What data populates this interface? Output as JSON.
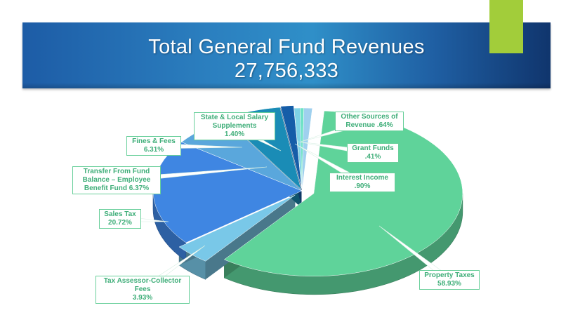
{
  "title": {
    "line1": "Total General Fund Revenues",
    "line2": "27,756,333"
  },
  "colors": {
    "banner": "#2b7fbf",
    "accent": "#a2cd3a",
    "label_text": "#3fae79",
    "label_border": "#68cf9a"
  },
  "chart_data": {
    "type": "pie",
    "title": "Total General Fund Revenues 27,756,333",
    "three_d": true,
    "slices": [
      {
        "key": "property",
        "name": "Property Taxes",
        "value": 58.93,
        "color": "#5fd39a",
        "label_lines": [
          "Property Taxes",
          "58.93%"
        ]
      },
      {
        "key": "tax_assessor",
        "name": "Tax Assessor-Collector Fees",
        "value": 3.93,
        "color": "#79c8e8",
        "label_lines": [
          "Tax Assessor-Collector",
          "Fees",
          "3.93%"
        ]
      },
      {
        "key": "sales",
        "name": "Sales Tax",
        "value": 20.72,
        "color": "#3f86e2",
        "label_lines": [
          "Sales Tax",
          "20.72%"
        ]
      },
      {
        "key": "transfer",
        "name": "Transfer From Fund Balance – Employee Benefit Fund",
        "value": 6.37,
        "color": "#5aa7dc",
        "label_lines": [
          "Transfer From Fund",
          "Balance – Employee",
          "Benefit Fund 6.37%"
        ]
      },
      {
        "key": "fines",
        "name": "Fines & Fees",
        "value": 6.31,
        "color": "#1a8cb6",
        "label_lines": [
          "Fines & Fees",
          "6.31%"
        ]
      },
      {
        "key": "state_local",
        "name": "State & Local Salary Supplements",
        "value": 1.4,
        "color": "#155da8",
        "label_lines": [
          "State & Local Salary",
          "Supplements",
          "1.40%"
        ]
      },
      {
        "key": "other",
        "name": "Other Sources of Revenue",
        "value": 0.64,
        "color": "#7ed3e6",
        "label_lines": [
          "Other Sources of",
          "Revenue .64%"
        ]
      },
      {
        "key": "grant",
        "name": "Grant Funds",
        "value": 0.41,
        "color": "#6fe2c6",
        "label_lines": [
          "Grant Funds",
          ".41%"
        ]
      },
      {
        "key": "interest",
        "name": "Interest Income",
        "value": 0.9,
        "color": "#9fd0ee",
        "label_lines": [
          "Interest Income",
          ".90%"
        ]
      }
    ]
  }
}
